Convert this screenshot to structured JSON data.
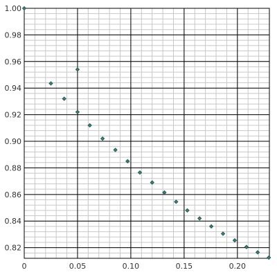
{
  "chart_data": {
    "type": "scatter",
    "title": "",
    "xlabel": "",
    "ylabel": "",
    "xlim": [
      0,
      0.23
    ],
    "ylim": [
      0.812,
      1.0
    ],
    "x_ticks": [
      0,
      0.05,
      0.1,
      0.15,
      0.2
    ],
    "x_tick_labels": [
      "0",
      "0.05",
      "0.10",
      "0.15",
      "0.20"
    ],
    "y_ticks": [
      0.82,
      0.84,
      0.86,
      0.88,
      0.9,
      0.92,
      0.94,
      0.96,
      0.98,
      1.0
    ],
    "y_tick_labels": [
      "0.82",
      "0.84",
      "0.86",
      "0.88",
      "0.90",
      "0.92",
      "0.94",
      "0.96",
      "0.98",
      "1.00"
    ],
    "grid": true,
    "colors": {
      "marker_fill": "#3f7f7a",
      "marker_edge": "#1f4f4c",
      "major_grid": "#000000",
      "minor_grid": "#c8c8c8"
    },
    "series": [
      {
        "points": [
          [
            0.0,
            1.0
          ],
          [
            0.025,
            0.9435
          ],
          [
            0.0375,
            0.932
          ],
          [
            0.05,
            0.954
          ],
          [
            0.05,
            0.922
          ],
          [
            0.0615,
            0.912
          ],
          [
            0.0735,
            0.902
          ],
          [
            0.0855,
            0.8935
          ],
          [
            0.097,
            0.885
          ],
          [
            0.1085,
            0.8765
          ],
          [
            0.12,
            0.869
          ],
          [
            0.1315,
            0.8615
          ],
          [
            0.1425,
            0.8545
          ],
          [
            0.153,
            0.848
          ],
          [
            0.1645,
            0.842
          ],
          [
            0.1755,
            0.836
          ],
          [
            0.1865,
            0.8305
          ],
          [
            0.1975,
            0.8255
          ],
          [
            0.2085,
            0.8205
          ],
          [
            0.219,
            0.8165
          ],
          [
            0.2295,
            0.8125
          ]
        ]
      }
    ]
  }
}
